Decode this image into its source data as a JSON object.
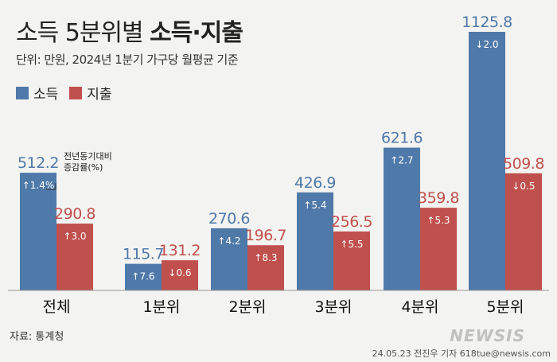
{
  "title_normal": "소득 5분위별 ",
  "title_bold": "소득·지출",
  "subtitle": "단위: 만원, 2024년 1분기 가구당 월평균 기준",
  "note": "전년동기대비\n증감률(%)",
  "source": "자료: 통계청",
  "credit": "24.05.23 전진우 기자 618tue@newsis.com",
  "watermark": "NEWSIS",
  "colors": {
    "income": "#4f79a8",
    "spending": "#c0504d",
    "label_income": "#4f79a8",
    "label_spending": "#c0504d"
  },
  "chart_data": {
    "type": "bar",
    "categories": [
      "전체",
      "1분위",
      "2분위",
      "3분위",
      "4분위",
      "5분위"
    ],
    "series": [
      {
        "name": "소득",
        "values": [
          512.2,
          115.7,
          270.6,
          426.9,
          621.6,
          1125.8
        ],
        "value_labels": [
          "512.2",
          "115.7",
          "270.6",
          "426.9",
          "621.6",
          "1125.8"
        ],
        "change": [
          "↑1.4%",
          "↑7.6",
          "↑4.2",
          "↑5.4",
          "↑2.7",
          "↓2.0"
        ]
      },
      {
        "name": "지출",
        "values": [
          290.8,
          131.2,
          196.7,
          256.5,
          359.8,
          509.8
        ],
        "value_labels": [
          "290.8",
          "131.2",
          "196.7",
          "256.5",
          "359.8",
          "509.8"
        ],
        "change": [
          "↑3.0",
          "↓0.6",
          "↑8.3",
          "↑5.5",
          "↑5.3",
          "↓0.5"
        ]
      }
    ],
    "ylim": [
      0,
      1200
    ]
  }
}
